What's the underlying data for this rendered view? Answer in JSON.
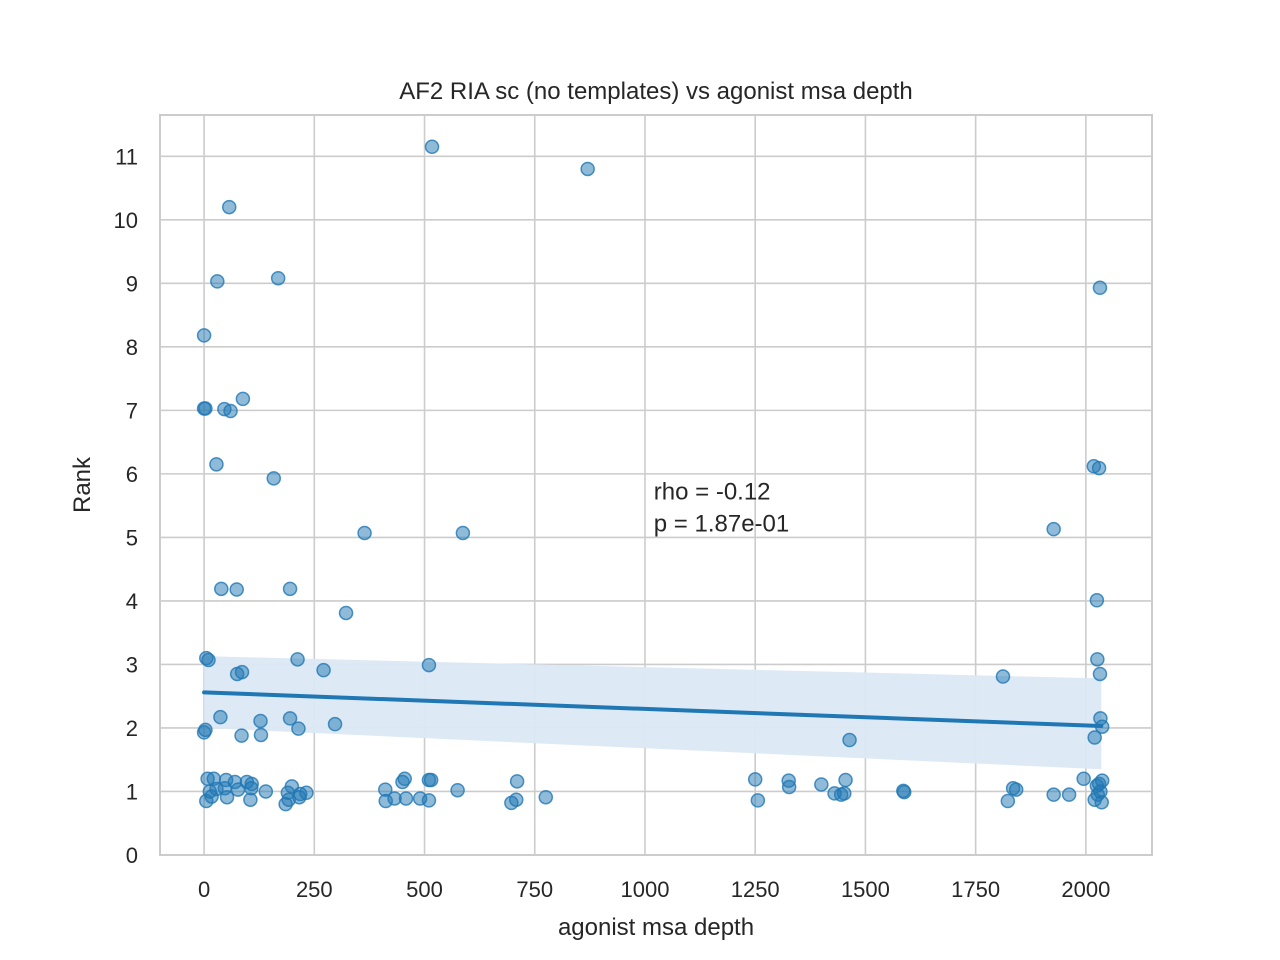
{
  "chart_data": {
    "type": "scatter",
    "title": "AF2 RIA sc (no templates) vs agonist msa depth",
    "xlabel": "agonist msa depth",
    "ylabel": "Rank",
    "xlim": [
      -100,
      2150
    ],
    "ylim": [
      0,
      11.65
    ],
    "xticks": [
      0,
      250,
      500,
      750,
      1000,
      1250,
      1500,
      1750,
      2000
    ],
    "yticks": [
      0,
      1,
      2,
      3,
      4,
      5,
      6,
      7,
      8,
      9,
      10,
      11
    ],
    "grid": true,
    "annotation": {
      "lines": [
        "rho = -0.12",
        "p = 1.87e-01"
      ],
      "x": 1020,
      "y": 5.6
    },
    "regression": {
      "x": [
        0,
        2035
      ],
      "y": [
        2.56,
        2.03
      ],
      "ci_upper": [
        3.13,
        2.78
      ],
      "ci_lower": [
        2.0,
        1.35
      ]
    },
    "colors": {
      "points": "#1f77b4",
      "line": "#1f77b4",
      "ci_band": "#dbe8f4"
    },
    "points": [
      [
        517,
        11.15
      ],
      [
        870,
        10.8
      ],
      [
        57,
        10.2
      ],
      [
        30,
        9.03
      ],
      [
        168,
        9.08
      ],
      [
        2032,
        8.93
      ],
      [
        0,
        8.18
      ],
      [
        88,
        7.18
      ],
      [
        0,
        7.03
      ],
      [
        3,
        7.03
      ],
      [
        46,
        7.02
      ],
      [
        60,
        6.99
      ],
      [
        28,
        6.15
      ],
      [
        2018,
        6.12
      ],
      [
        2030,
        6.09
      ],
      [
        158,
        5.93
      ],
      [
        364,
        5.07
      ],
      [
        587,
        5.07
      ],
      [
        1927,
        5.13
      ],
      [
        39,
        4.19
      ],
      [
        74,
        4.18
      ],
      [
        195,
        4.19
      ],
      [
        2025,
        4.01
      ],
      [
        322,
        3.81
      ],
      [
        5,
        3.1
      ],
      [
        10,
        3.07
      ],
      [
        212,
        3.08
      ],
      [
        510,
        2.99
      ],
      [
        2026,
        3.08
      ],
      [
        271,
        2.91
      ],
      [
        86,
        2.88
      ],
      [
        75,
        2.85
      ],
      [
        1812,
        2.81
      ],
      [
        2032,
        2.85
      ],
      [
        37,
        2.17
      ],
      [
        128,
        2.11
      ],
      [
        195,
        2.15
      ],
      [
        297,
        2.06
      ],
      [
        2033,
        2.15
      ],
      [
        2037,
        2.02
      ],
      [
        214,
        1.99
      ],
      [
        0,
        1.93
      ],
      [
        3,
        1.97
      ],
      [
        85,
        1.88
      ],
      [
        129,
        1.89
      ],
      [
        1464,
        1.81
      ],
      [
        2020,
        1.85
      ],
      [
        8,
        1.2
      ],
      [
        22,
        1.2
      ],
      [
        50,
        1.18
      ],
      [
        70,
        1.15
      ],
      [
        97,
        1.15
      ],
      [
        108,
        1.12
      ],
      [
        199,
        1.08
      ],
      [
        13,
        1.0
      ],
      [
        28,
        1.04
      ],
      [
        47,
        1.05
      ],
      [
        77,
        1.03
      ],
      [
        107,
        1.05
      ],
      [
        140,
        1.0
      ],
      [
        190,
        0.98
      ],
      [
        232,
        0.98
      ],
      [
        5,
        0.85
      ],
      [
        17,
        0.92
      ],
      [
        52,
        0.91
      ],
      [
        105,
        0.87
      ],
      [
        185,
        0.8
      ],
      [
        192,
        0.87
      ],
      [
        216,
        0.91
      ],
      [
        218,
        0.96
      ],
      [
        411,
        1.03
      ],
      [
        412,
        0.85
      ],
      [
        432,
        0.89
      ],
      [
        450,
        1.15
      ],
      [
        455,
        1.2
      ],
      [
        458,
        0.89
      ],
      [
        490,
        0.89
      ],
      [
        510,
        1.18
      ],
      [
        515,
        1.18
      ],
      [
        510,
        0.86
      ],
      [
        575,
        1.02
      ],
      [
        697,
        0.82
      ],
      [
        708,
        0.87
      ],
      [
        710,
        1.16
      ],
      [
        775,
        0.91
      ],
      [
        1250,
        1.19
      ],
      [
        1256,
        0.86
      ],
      [
        1326,
        1.17
      ],
      [
        1327,
        1.07
      ],
      [
        1400,
        1.11
      ],
      [
        1430,
        0.97
      ],
      [
        1445,
        0.95
      ],
      [
        1452,
        0.97
      ],
      [
        1455,
        1.18
      ],
      [
        1586,
        1.01
      ],
      [
        1588,
        0.99
      ],
      [
        1823,
        0.85
      ],
      [
        1835,
        1.05
      ],
      [
        1842,
        1.03
      ],
      [
        1927,
        0.95
      ],
      [
        1962,
        0.95
      ],
      [
        1995,
        1.2
      ],
      [
        2020,
        0.87
      ],
      [
        2025,
        1.09
      ],
      [
        2027,
        0.95
      ],
      [
        2030,
        1.12
      ],
      [
        2033,
        1.0
      ],
      [
        2037,
        1.17
      ],
      [
        2036,
        0.83
      ]
    ]
  }
}
